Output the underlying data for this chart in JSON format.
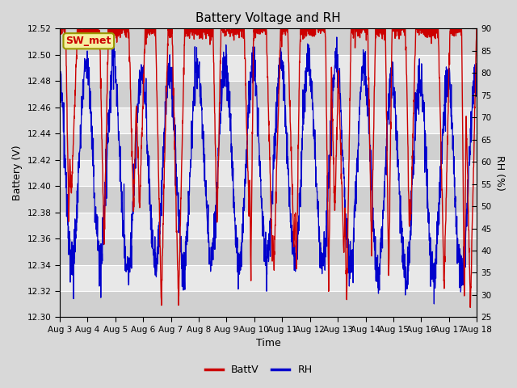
{
  "title": "Battery Voltage and RH",
  "xlabel": "Time",
  "ylabel_left": "Battery (V)",
  "ylabel_right": "RH (%)",
  "x_tick_labels": [
    "Aug 3",
    "Aug 4",
    "Aug 5",
    "Aug 6",
    "Aug 7",
    "Aug 8",
    "Aug 9",
    "Aug 10",
    "Aug 11",
    "Aug 12",
    "Aug 13",
    "Aug 14",
    "Aug 15",
    "Aug 16",
    "Aug 17",
    "Aug 18"
  ],
  "ylim_left": [
    12.3,
    12.52
  ],
  "ylim_right": [
    25,
    90
  ],
  "yticks_left": [
    12.3,
    12.32,
    12.34,
    12.36,
    12.38,
    12.4,
    12.42,
    12.44,
    12.46,
    12.48,
    12.5,
    12.52
  ],
  "yticks_right": [
    25,
    30,
    35,
    40,
    45,
    50,
    55,
    60,
    65,
    70,
    75,
    80,
    85,
    90
  ],
  "batt_color": "#cc0000",
  "rh_color": "#0000cc",
  "legend_label_batt": "BattV",
  "legend_label_rh": "RH",
  "station_label": "SW_met",
  "bg_color": "#d8d8d8",
  "plot_bg_color": "#e8e8e8",
  "band_color": "#d0d0d0",
  "grid_color": "#ffffff",
  "seed": 12345
}
